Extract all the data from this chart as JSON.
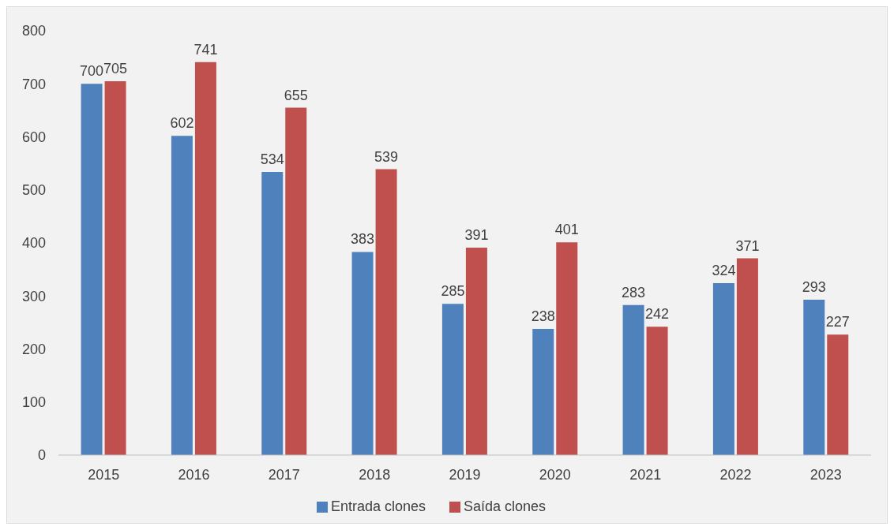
{
  "chart_data": {
    "type": "bar",
    "categories": [
      "2015",
      "2016",
      "2017",
      "2018",
      "2019",
      "2020",
      "2021",
      "2022",
      "2023"
    ],
    "series": [
      {
        "name": "Entrada clones",
        "color": "#4f81bd",
        "values": [
          700,
          602,
          534,
          383,
          285,
          238,
          283,
          324,
          293
        ]
      },
      {
        "name": "Saída clones",
        "color": "#c0504d",
        "values": [
          705,
          741,
          655,
          539,
          391,
          401,
          242,
          371,
          227
        ]
      }
    ],
    "ylim": [
      0,
      800
    ],
    "yticks": [
      0,
      100,
      200,
      300,
      400,
      500,
      600,
      700,
      800
    ],
    "grid": false,
    "legend": "bottom",
    "data_labels": true
  }
}
